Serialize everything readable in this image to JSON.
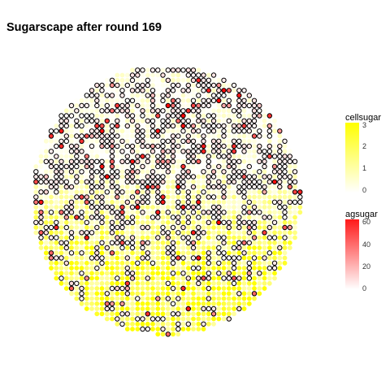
{
  "chart_data": {
    "type": "scatter",
    "title": "Sugarscape after round 169",
    "xlabel": "",
    "ylabel": "",
    "grid": false,
    "cell_layer": {
      "fill_variable": "cellsugar",
      "color_low": "#ffffff",
      "color_high": "#ffff00",
      "legend_title": "cellsugar",
      "legend_ticks": [
        "3",
        "2",
        "1",
        "0"
      ],
      "range": [
        0,
        3
      ]
    },
    "agent_layer": {
      "fill_variable": "agsugar",
      "color_low": "#ffffff",
      "color_high": "#ff0000",
      "outline": "#000000",
      "legend_title": "agsugar",
      "legend_ticks": [
        "60",
        "40",
        "20",
        "0"
      ],
      "range": [
        0,
        63
      ]
    },
    "grid_shape": "circular lattice",
    "legend_position": "right"
  }
}
